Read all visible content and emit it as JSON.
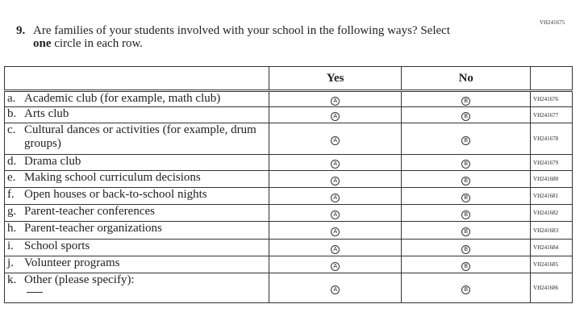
{
  "question_id": "VH241675",
  "question": {
    "number": "9.",
    "text_line1": "Are families of your students involved with your school in the following ways? Select",
    "bold_word": "one",
    "text_line2_rest": " circle in each row."
  },
  "columns": {
    "yes": "Yes",
    "no": "No"
  },
  "bubbles": {
    "yes": "A",
    "no": "B"
  },
  "rows": [
    {
      "letter": "a.",
      "label": "Academic club (for example, math club)",
      "id": "VH241676"
    },
    {
      "letter": "b.",
      "label": "Arts club",
      "id": "VH241677"
    },
    {
      "letter": "c.",
      "label": "Cultural dances or activities (for example, drum groups)",
      "id": "VH241678"
    },
    {
      "letter": "d.",
      "label": "Drama club",
      "id": "VH241679"
    },
    {
      "letter": "e.",
      "label": "Making school curriculum decisions",
      "id": "VH241680"
    },
    {
      "letter": "f.",
      "label": "Open houses or back-to-school nights",
      "id": "VH241681"
    },
    {
      "letter": "g.",
      "label": "Parent-teacher conferences",
      "id": "VH241682"
    },
    {
      "letter": "h.",
      "label": "Parent-teacher organizations",
      "id": "VH241683"
    },
    {
      "letter": "i.",
      "label": "School sports",
      "id": "VH241684"
    },
    {
      "letter": "j.",
      "label": "Volunteer programs",
      "id": "VH241685"
    },
    {
      "letter": "k.",
      "label": "Other (please specify):",
      "id": "VH241686"
    }
  ]
}
